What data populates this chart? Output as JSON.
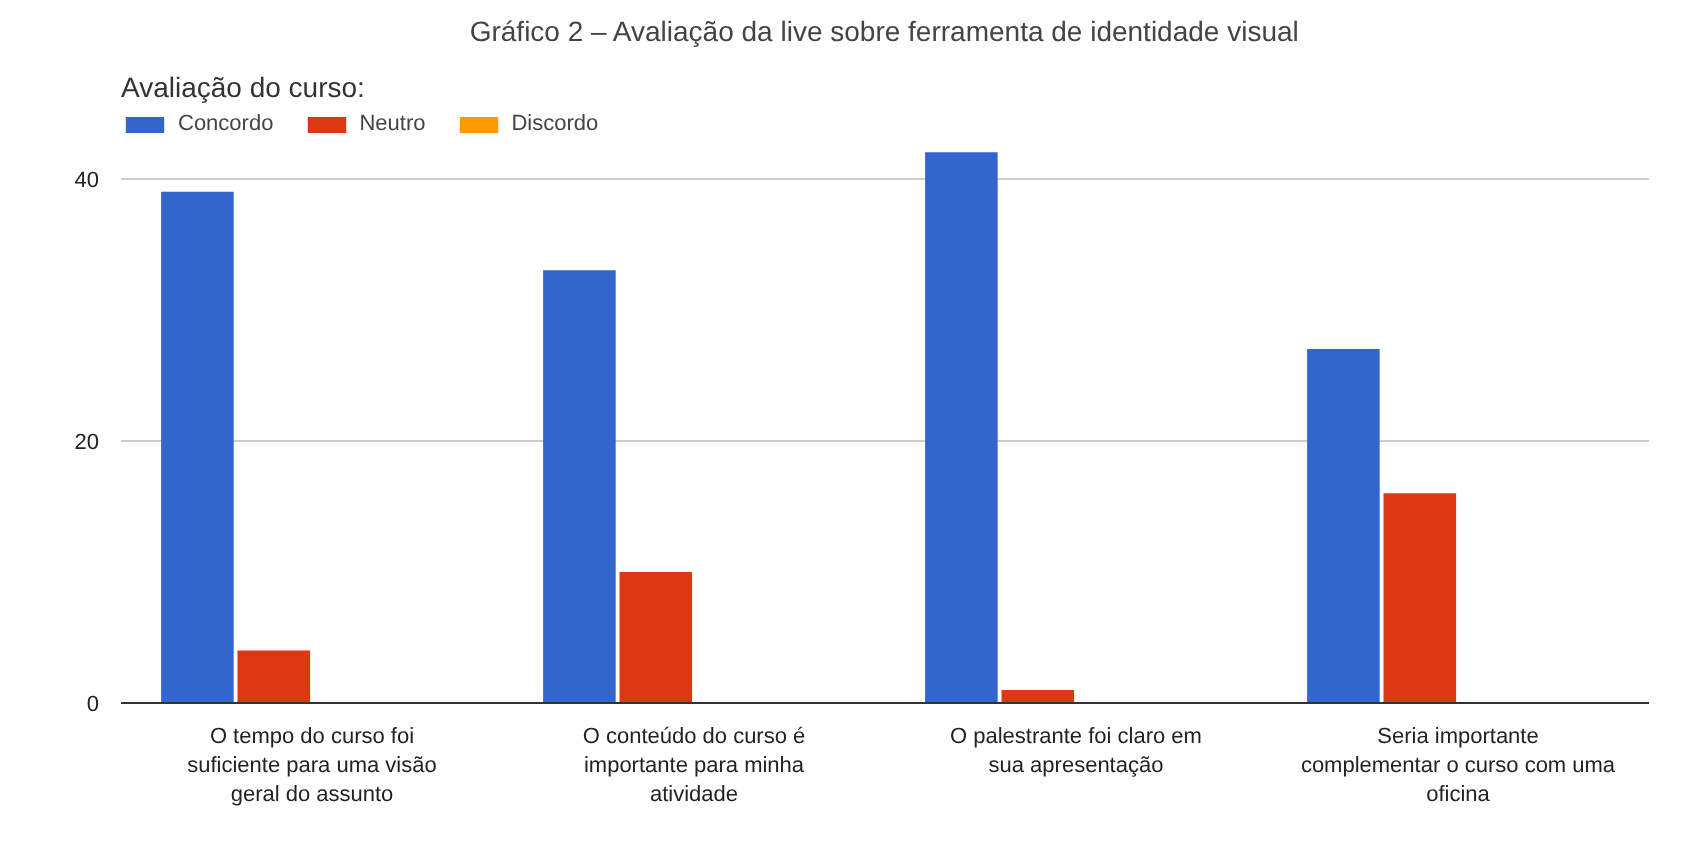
{
  "chart_data": {
    "type": "bar",
    "title": "Gráfico 2 – Avaliação da live sobre ferramenta de identidade visual",
    "subtitle": "Avaliação do curso:",
    "categories": [
      "O tempo do curso foi suficiente para uma visão geral do assunto",
      "O conteúdo do curso é importante para minha atividade",
      "O palestrante foi claro em sua apresentação",
      "Seria importante complementar o curso com uma oficina"
    ],
    "series": [
      {
        "name": "Concordo",
        "color": "#3366cc",
        "values": [
          39,
          33,
          42,
          27
        ]
      },
      {
        "name": "Neutro",
        "color": "#dc3912",
        "values": [
          4,
          10,
          1,
          16
        ]
      },
      {
        "name": "Discordo",
        "color": "#ff9900",
        "values": [
          0,
          0,
          0,
          0
        ]
      }
    ],
    "ylim": [
      0,
      45
    ],
    "yticks": [
      0,
      20,
      40
    ],
    "grid": "y",
    "legend": "top left"
  }
}
